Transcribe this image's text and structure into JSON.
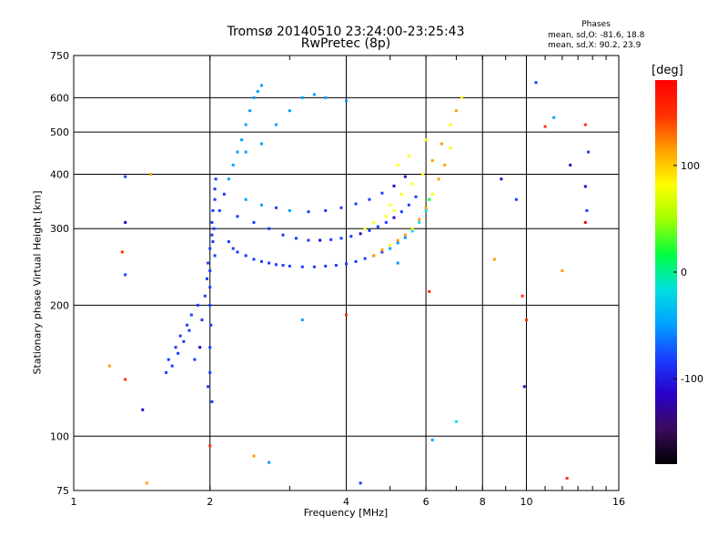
{
  "header": {
    "title_line1": "Tromsø 20140510 23:24:00-23:25:43",
    "title_line2": "RwPretec (8p)",
    "phase_title": "Phases",
    "phase_o": "mean, sd,O: -81.6, 18.8",
    "phase_x": "mean, sd,X:  90.2, 23.9"
  },
  "colorbar": {
    "unit": "[deg]",
    "ticks": [
      {
        "value": 100,
        "label": "100"
      },
      {
        "value": 0,
        "label": "0"
      },
      {
        "value": -100,
        "label": "-100"
      }
    ],
    "range": [
      -180,
      180
    ],
    "colors": [
      "#000000",
      "#3a0a5a",
      "#2a00c8",
      "#1a3cff",
      "#00a0ff",
      "#00e0e0",
      "#00ff40",
      "#a0ff00",
      "#ffff00",
      "#ffa000",
      "#ff3000",
      "#ff0000"
    ]
  },
  "chart_data": {
    "type": "scatter",
    "xlabel": "Frequency [MHz]",
    "ylabel": "Stationary phase Virtual Height [km]",
    "xscale": "log",
    "yscale": "log",
    "xlim": [
      1,
      16
    ],
    "ylim": [
      75,
      750
    ],
    "xticks": [
      {
        "value": 1,
        "label": "1"
      },
      {
        "value": 2,
        "label": "2"
      },
      {
        "value": 4,
        "label": "4"
      },
      {
        "value": 6,
        "label": "6"
      },
      {
        "value": 8,
        "label": "8"
      },
      {
        "value": 10,
        "label": "10"
      },
      {
        "value": 16,
        "label": "16"
      }
    ],
    "yticks": [
      {
        "value": 75,
        "label": "75"
      },
      {
        "value": 100,
        "label": "100"
      },
      {
        "value": 200,
        "label": "200"
      },
      {
        "value": 300,
        "label": "300"
      },
      {
        "value": 400,
        "label": "400"
      },
      {
        "value": 500,
        "label": "500"
      },
      {
        "value": 600,
        "label": "600"
      },
      {
        "value": 750,
        "label": "750"
      }
    ],
    "grid": true,
    "series": [
      {
        "mode": "O",
        "phase_mean_deg": -81.6,
        "phase_sd_deg": 18.8,
        "points": [
          [
            1.6,
            140,
            -90
          ],
          [
            1.62,
            150,
            -95
          ],
          [
            1.65,
            145,
            -88
          ],
          [
            1.68,
            160,
            -92
          ],
          [
            1.7,
            155,
            -85
          ],
          [
            1.72,
            170,
            -90
          ],
          [
            1.75,
            165,
            -80
          ],
          [
            1.78,
            180,
            -95
          ],
          [
            1.8,
            175,
            -88
          ],
          [
            1.82,
            190,
            -90
          ],
          [
            1.85,
            150,
            -85
          ],
          [
            1.88,
            200,
            -92
          ],
          [
            1.9,
            160,
            -100
          ],
          [
            1.92,
            185,
            -85
          ],
          [
            1.95,
            210,
            -90
          ],
          [
            1.97,
            230,
            -95
          ],
          [
            1.98,
            250,
            -88
          ],
          [
            2.0,
            270,
            -92
          ],
          [
            2.02,
            290,
            -90
          ],
          [
            2.02,
            310,
            -85
          ],
          [
            2.03,
            330,
            -95
          ],
          [
            2.05,
            350,
            -80
          ],
          [
            2.05,
            370,
            -88
          ],
          [
            2.06,
            390,
            -90
          ],
          [
            2.0,
            200,
            -85
          ],
          [
            2.0,
            220,
            -92
          ],
          [
            2.0,
            240,
            -88
          ],
          [
            2.01,
            180,
            -90
          ],
          [
            2.0,
            160,
            -95
          ],
          [
            2.0,
            140,
            -85
          ],
          [
            1.98,
            130,
            -90
          ],
          [
            2.02,
            120,
            -85
          ],
          [
            2.05,
            260,
            -95
          ],
          [
            2.03,
            280,
            -85
          ],
          [
            2.04,
            300,
            -90
          ],
          [
            2.1,
            330,
            -80
          ],
          [
            2.15,
            360,
            -70
          ],
          [
            2.2,
            390,
            -65
          ],
          [
            2.25,
            420,
            -60
          ],
          [
            2.3,
            450,
            -55
          ],
          [
            2.35,
            480,
            -50
          ],
          [
            2.4,
            520,
            -45
          ],
          [
            2.45,
            560,
            -40
          ],
          [
            2.5,
            600,
            -40
          ],
          [
            2.55,
            620,
            -45
          ],
          [
            2.6,
            640,
            -50
          ],
          [
            2.2,
            280,
            -85
          ],
          [
            2.25,
            270,
            -80
          ],
          [
            2.3,
            265,
            -85
          ],
          [
            2.4,
            260,
            -75
          ],
          [
            2.5,
            255,
            -80
          ],
          [
            2.6,
            252,
            -70
          ],
          [
            2.7,
            250,
            -85
          ],
          [
            2.8,
            248,
            -80
          ],
          [
            2.9,
            247,
            -75
          ],
          [
            3.0,
            246,
            -85
          ],
          [
            3.2,
            245,
            -90
          ],
          [
            3.4,
            245,
            -95
          ],
          [
            3.6,
            246,
            -85
          ],
          [
            3.8,
            247,
            -90
          ],
          [
            4.0,
            249,
            -95
          ],
          [
            4.2,
            252,
            -90
          ],
          [
            4.4,
            256,
            -85
          ],
          [
            4.6,
            260,
            -80
          ],
          [
            4.8,
            265,
            -70
          ],
          [
            5.0,
            270,
            -60
          ],
          [
            5.2,
            278,
            -50
          ],
          [
            5.4,
            286,
            -40
          ],
          [
            5.6,
            296,
            -30
          ],
          [
            5.8,
            310,
            -20
          ],
          [
            6.0,
            330,
            -10
          ],
          [
            6.1,
            350,
            0
          ],
          [
            2.3,
            320,
            -70
          ],
          [
            2.5,
            310,
            -75
          ],
          [
            2.7,
            300,
            -80
          ],
          [
            2.9,
            290,
            -85
          ],
          [
            3.1,
            285,
            -90
          ],
          [
            3.3,
            282,
            -95
          ],
          [
            3.5,
            282,
            -100
          ],
          [
            3.7,
            283,
            -95
          ],
          [
            3.9,
            285,
            -90
          ],
          [
            4.1,
            288,
            -95
          ],
          [
            4.3,
            292,
            -100
          ],
          [
            4.5,
            297,
            -95
          ],
          [
            4.7,
            303,
            -90
          ],
          [
            4.9,
            310,
            -95
          ],
          [
            5.1,
            318,
            -100
          ],
          [
            5.3,
            328,
            -95
          ],
          [
            5.5,
            340,
            -90
          ],
          [
            5.7,
            355,
            -85
          ],
          [
            2.4,
            350,
            -60
          ],
          [
            2.6,
            340,
            -65
          ],
          [
            2.8,
            335,
            -70
          ],
          [
            3.0,
            330,
            -65
          ],
          [
            3.3,
            328,
            -70
          ],
          [
            3.6,
            330,
            -75
          ],
          [
            3.9,
            335,
            -80
          ],
          [
            4.2,
            342,
            -85
          ],
          [
            4.5,
            350,
            -90
          ],
          [
            4.8,
            362,
            -95
          ],
          [
            5.1,
            376,
            -100
          ],
          [
            5.4,
            395,
            -105
          ],
          [
            2.4,
            450,
            -40
          ],
          [
            2.6,
            470,
            -45
          ],
          [
            2.8,
            520,
            -50
          ],
          [
            3.0,
            560,
            -55
          ],
          [
            3.2,
            600,
            -50
          ],
          [
            3.4,
            610,
            -45
          ],
          [
            3.6,
            600,
            -50
          ],
          [
            4.0,
            590,
            -55
          ]
        ]
      },
      {
        "mode": "X",
        "phase_mean_deg": 90.2,
        "phase_sd_deg": 23.9,
        "points": [
          [
            4.6,
            260,
            100
          ],
          [
            4.8,
            268,
            110
          ],
          [
            5.0,
            275,
            95
          ],
          [
            5.2,
            282,
            100
          ],
          [
            5.4,
            290,
            105
          ],
          [
            5.6,
            300,
            90
          ],
          [
            5.8,
            315,
            100
          ],
          [
            6.0,
            335,
            110
          ],
          [
            6.2,
            360,
            95
          ],
          [
            6.4,
            390,
            100
          ],
          [
            6.6,
            420,
            105
          ],
          [
            6.8,
            460,
            90
          ],
          [
            5.0,
            340,
            80
          ],
          [
            5.3,
            360,
            85
          ],
          [
            5.6,
            380,
            90
          ],
          [
            5.9,
            400,
            95
          ],
          [
            6.2,
            430,
            100
          ],
          [
            6.5,
            470,
            105
          ],
          [
            6.8,
            520,
            95
          ],
          [
            7.0,
            560,
            100
          ],
          [
            7.2,
            600,
            90
          ],
          [
            5.2,
            420,
            75
          ],
          [
            5.5,
            440,
            80
          ],
          [
            6.0,
            480,
            85
          ],
          [
            4.4,
            300,
            70
          ],
          [
            4.6,
            310,
            75
          ],
          [
            4.9,
            320,
            85
          ],
          [
            5.1,
            330,
            95
          ]
        ]
      },
      {
        "mode": "noise",
        "points": [
          [
            1.3,
            395,
            -90
          ],
          [
            1.3,
            310,
            -120
          ],
          [
            1.28,
            265,
            150
          ],
          [
            1.3,
            235,
            -90
          ],
          [
            1.2,
            145,
            120
          ],
          [
            1.3,
            135,
            140
          ],
          [
            1.42,
            115,
            -110
          ],
          [
            1.48,
            400,
            110
          ],
          [
            1.45,
            78,
            130
          ],
          [
            2.0,
            95,
            150
          ],
          [
            2.5,
            90,
            120
          ],
          [
            2.7,
            87,
            -40
          ],
          [
            3.2,
            185,
            -60
          ],
          [
            4.0,
            190,
            160
          ],
          [
            4.3,
            78,
            -90
          ],
          [
            5.2,
            250,
            -60
          ],
          [
            6.1,
            215,
            150
          ],
          [
            6.2,
            98,
            -40
          ],
          [
            7.0,
            108,
            -30
          ],
          [
            8.5,
            255,
            120
          ],
          [
            8.8,
            390,
            -100
          ],
          [
            9.5,
            350,
            -80
          ],
          [
            9.8,
            210,
            160
          ],
          [
            9.9,
            130,
            -100
          ],
          [
            10.0,
            185,
            160
          ],
          [
            10.5,
            650,
            -90
          ],
          [
            11.0,
            515,
            140
          ],
          [
            11.5,
            540,
            -60
          ],
          [
            12.0,
            240,
            110
          ],
          [
            12.3,
            80,
            140
          ],
          [
            12.5,
            420,
            -100
          ],
          [
            13.5,
            310,
            170
          ],
          [
            13.5,
            375,
            -100
          ],
          [
            13.6,
            330,
            -80
          ],
          [
            13.7,
            450,
            -80
          ],
          [
            13.5,
            520,
            150
          ]
        ]
      }
    ]
  }
}
